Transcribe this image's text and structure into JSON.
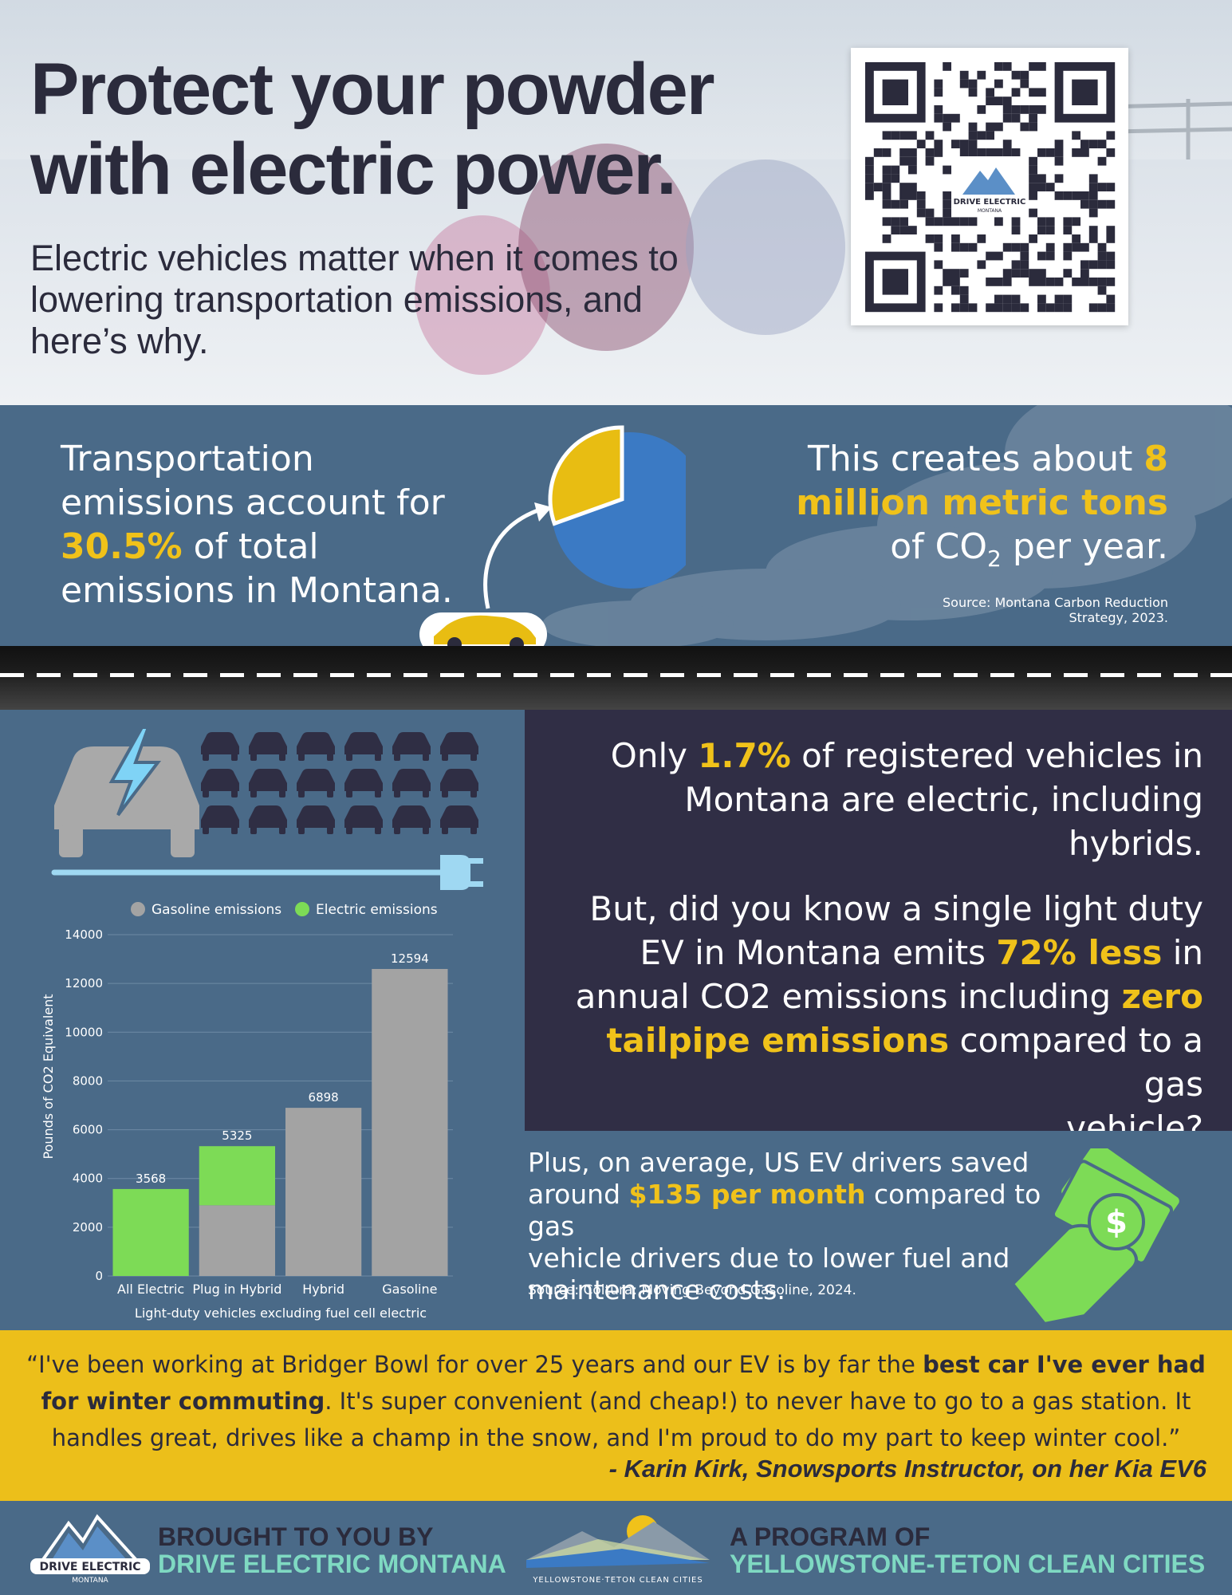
{
  "hero": {
    "title_line1": "Protect your powder",
    "title_line2": "with electric power.",
    "subtitle_line1": "Electric vehicles matter when it comes to",
    "subtitle_line2": "lowering transportation emissions, and",
    "subtitle_line3": "here’s why.",
    "qr_logo_text": "DRIVE ELECTRIC",
    "qr_logo_sub": "MONTANA"
  },
  "emissions": {
    "left_l1": "Transportation",
    "left_l2": "emissions account for",
    "left_pct": "30.5%",
    "left_l3_rest": " of total",
    "left_l4": "emissions in Montana.",
    "pie_share": 0.305,
    "right_l1a": "This creates about ",
    "right_l1b": "8",
    "right_l2": "million metric tons",
    "right_l3a": "of CO",
    "right_sub": "2",
    "right_l3b": " per year.",
    "source_l1": "Source: Montana Carbon Reduction",
    "source_l2": "Strategy, 2023."
  },
  "registered": {
    "l1a": "Only ",
    "l1b": "1.7%",
    "l1c": " of registered vehicles in",
    "l2": "Montana are electric, including",
    "l3": "hybrids.",
    "q1": "But, did you know a single light duty",
    "q2a": "EV in Montana emits ",
    "q2b": "72% less",
    "q2c": " in",
    "q3a": "annual CO2 emissions including ",
    "q3b": "zero",
    "q4a": "tailpipe emissions",
    "q4b": " compared to a gas",
    "q5": "vehicle?"
  },
  "savings": {
    "l1": "Plus, on average, US EV drivers saved",
    "l2a": "around ",
    "l2b": "$135 per month",
    "l2c": " compared to gas",
    "l3": "vehicle drivers due to lower fuel and",
    "l4": "maintenance costs.",
    "source": "Source: Coltura: Moving Beyond Gasoline, 2024.",
    "dollar": "$"
  },
  "quote": {
    "open": "“I've been working at Bridger Bowl for over 25 years and our EV is by far the ",
    "bold": "best car I've ever had for winter commuting",
    "rest": ". It's super convenient (and cheap!) to never have to go to a gas station. It handles great, drives like a champ in the snow, and I'm proud to do my part to keep winter cool.”",
    "attribution": "- Karin Kirk, Snowsports Instructor, on her Kia EV6"
  },
  "footer": {
    "left_a": "BROUGHT TO YOU BY",
    "left_b": "DRIVE ELECTRIC MONTANA",
    "left_logo": "DRIVE ELECTRIC",
    "left_logo_sub": "MONTANA",
    "right_a": "A PROGRAM OF",
    "right_b": "YELLOWSTONE-TETON CLEAN CITIES",
    "right_logo_caption": "YELLOWSTONE·TETON CLEAN CITIES"
  },
  "colors": {
    "gasoline": "#a3a3a3",
    "electric": "#7ddb56",
    "highlight": "#f0c21a",
    "dark_panel": "#302e45",
    "band": "#4a6a88",
    "pie_blue": "#3b7ac4"
  },
  "chart_data": {
    "type": "bar",
    "stacked": true,
    "categories": [
      "All Electric",
      "Plug in Hybrid",
      "Hybrid",
      "Gasoline"
    ],
    "series": [
      {
        "name": "Gasoline emissions",
        "values": [
          0,
          2900,
          6898,
          12594
        ]
      },
      {
        "name": "Electric emissions",
        "values": [
          3568,
          2425,
          0,
          0
        ]
      }
    ],
    "totals": [
      3568,
      5325,
      6898,
      12594
    ],
    "total_labels": [
      "3568",
      "5325",
      "6898",
      "12594"
    ],
    "yticks": [
      "0",
      "2000",
      "4000",
      "6000",
      "8000",
      "10000",
      "12000",
      "14000"
    ],
    "ylim": [
      0,
      14000
    ],
    "ylabel": "Pounds of CO2 Equivalent",
    "xlabel": "Light-duty vehicles excluding fuel cell electric",
    "legend_position": "top",
    "grid": true
  }
}
